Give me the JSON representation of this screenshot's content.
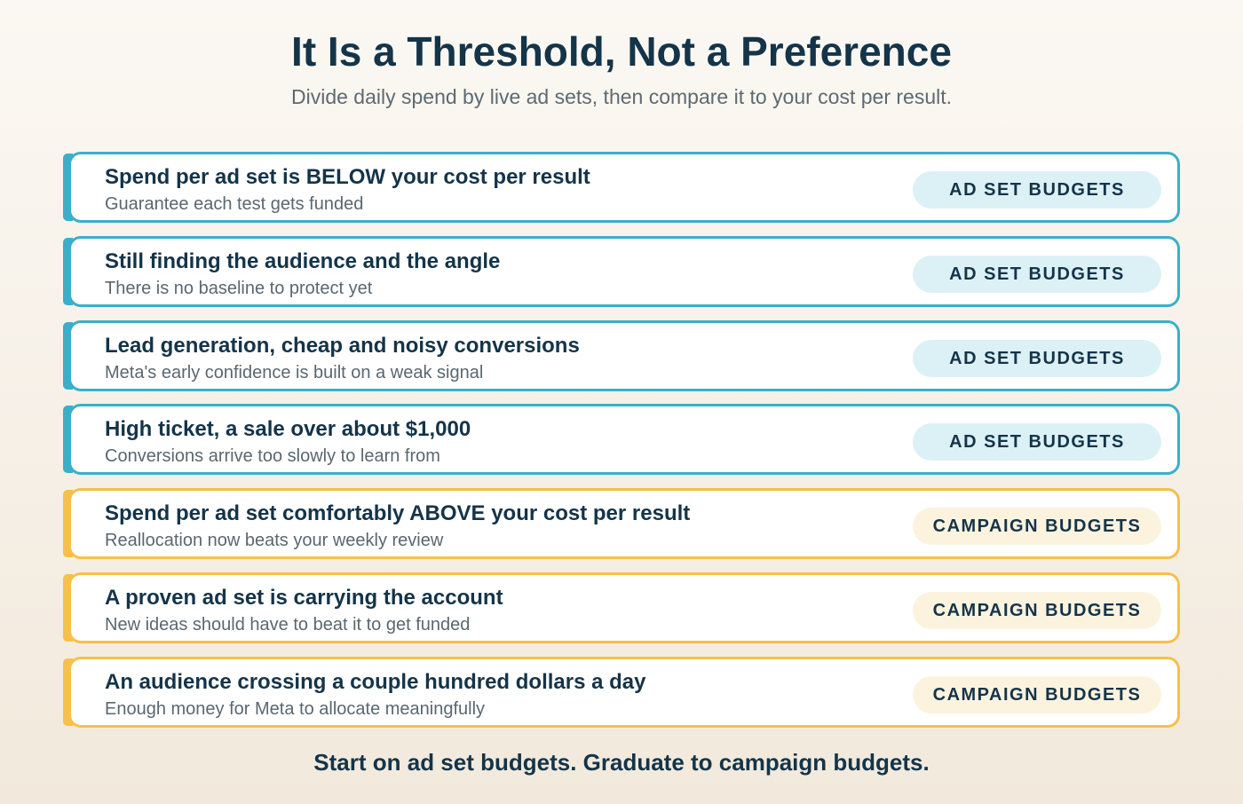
{
  "header": {
    "title": "It Is a Threshold, Not a Preference",
    "subtitle": "Divide daily spend by live ad sets, then compare it to your cost per result."
  },
  "colors": {
    "teal": "#3aafc9",
    "teal_pill": "#dcf1f6",
    "amber": "#f7c04a",
    "amber_pill": "#fcf3df",
    "text_dark": "#143449",
    "text_muted": "#5a6770"
  },
  "rows": [
    {
      "heading": "Spend per ad set is BELOW your cost per result",
      "subtext": "Guarantee each test gets funded",
      "badge": "AD SET BUDGETS",
      "variant": "teal"
    },
    {
      "heading": "Still finding the audience and the angle",
      "subtext": "There is no baseline to protect yet",
      "badge": "AD SET BUDGETS",
      "variant": "teal"
    },
    {
      "heading": "Lead generation, cheap and noisy conversions",
      "subtext": "Meta's early confidence is built on a weak signal",
      "badge": "AD SET BUDGETS",
      "variant": "teal"
    },
    {
      "heading": "High ticket, a sale over about $1,000",
      "subtext": "Conversions arrive too slowly to learn from",
      "badge": "AD SET BUDGETS",
      "variant": "teal"
    },
    {
      "heading": "Spend per ad set comfortably ABOVE your cost per result",
      "subtext": "Reallocation now beats your weekly review",
      "badge": "CAMPAIGN BUDGETS",
      "variant": "amber"
    },
    {
      "heading": "A proven ad set is carrying the account",
      "subtext": "New ideas should have to beat it to get funded",
      "badge": "CAMPAIGN BUDGETS",
      "variant": "amber"
    },
    {
      "heading": "An audience crossing a couple hundred dollars a day",
      "subtext": "Enough money for Meta to allocate meaningfully",
      "badge": "CAMPAIGN BUDGETS",
      "variant": "amber"
    }
  ],
  "footer": {
    "note": "Start on ad set budgets. Graduate to campaign budgets."
  }
}
